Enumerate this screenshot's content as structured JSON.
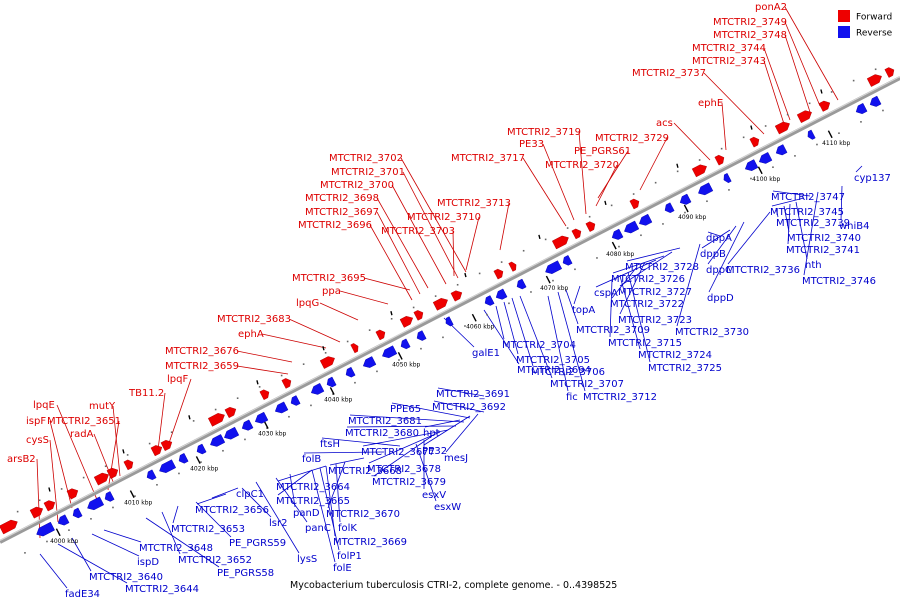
{
  "caption": "Mycobacterium tuberculosis CTRI-2, complete genome. - 0..4398525",
  "legend": [
    {
      "label": "Forward",
      "color": "#ee0000"
    },
    {
      "label": "Reverse",
      "color": "#1111ee"
    }
  ],
  "colors": {
    "forward": "#ee0000",
    "reverse": "#1111ee",
    "forward_line": "#cc0000",
    "reverse_line": "#0000cc",
    "backbone": "#9a9a9a"
  },
  "ticks": [
    "4000 kbp",
    "4010 kbp",
    "4020 kbp",
    "4030 kbp",
    "4040 kbp",
    "4050 kbp",
    "4060 kbp",
    "4070 kbp",
    "4080 kbp",
    "4090 kbp",
    "4100 kbp",
    "4110 kbp"
  ],
  "forward_labels": [
    "arsB2",
    "cysS",
    "ispF",
    "lpqE",
    "MTCTRI2_3651",
    "radA",
    "mutY",
    "TB11.2",
    "lpqF",
    "MTCTRI2_3659",
    "MTCTRI2_3676",
    "ephA",
    "MTCTRI2_3683",
    "lpqG",
    "ppa",
    "MTCTRI2_3695",
    "MTCTRI2_3696",
    "MTCTRI2_3697",
    "MTCTRI2_3698",
    "MTCTRI2_3700",
    "MTCTRI2_3701",
    "MTCTRI2_3702",
    "MTCTRI2_3703",
    "MTCTRI2_3710",
    "MTCTRI2_3713",
    "MTCTRI2_3717",
    "PE33",
    "MTCTRI2_3719",
    "MTCTRI2_3720",
    "PE_PGRS61",
    "MTCTRI2_3729",
    "acs",
    "ephE",
    "MTCTRI2_3737",
    "MTCTRI2_3743",
    "MTCTRI2_3744",
    "MTCTRI2_3748",
    "MTCTRI2_3749",
    "ponA2"
  ],
  "reverse_labels": [
    "fadE34",
    "MTCTRI2_3644",
    "MTCTRI2_3640",
    "ispD",
    "MTCTRI2_3648",
    "PE_PGRS58",
    "MTCTRI2_3652",
    "MTCTRI2_3653",
    "PE_PGRS59",
    "clpC1",
    "MTCTRI2_3656",
    "lsr2",
    "lysS",
    "panC",
    "panD",
    "MTCTRI2_3665",
    "MTCTRI2_3664",
    "folE",
    "folP1",
    "MTCTRI2_3669",
    "folK",
    "MTCTRI2_3670",
    "MTCTRI2_3668",
    "folB",
    "ftsH",
    "esxW",
    "esxV",
    "MTCTRI2_3679",
    "MTCTRI2_3678",
    "MTCTRI2_3677",
    "MTCTRI2_3680",
    "MTCTRI2_3681",
    "PPE65",
    "hpt",
    "PE32",
    "mesJ",
    "MTCTRI2_3692",
    "MTCTRI2_3691",
    "galE1",
    "MTCTRI2_3694",
    "MTCTRI2_3704",
    "MTCTRI2_3705",
    "MTCTRI2_3706",
    "MTCTRI2_3707",
    "fic",
    "MTCTRI2_3712",
    "MTCTRI2_3709",
    "topA",
    "MTCTRI2_3715",
    "MTCTRI2_3724",
    "MTCTRI2_3725",
    "MTCTRI2_3722",
    "MTCTRI2_3723",
    "cspA",
    "MTCTRI2_3726",
    "MTCTRI2_3727",
    "MTCTRI2_3728",
    "MTCTRI2_3730",
    "dppA",
    "dppB",
    "dppC",
    "dppD",
    "MTCTRI2_3736",
    "MTCTRI2_3739",
    "MTCTRI2_3740",
    "MTCTRI2_3741",
    "nth",
    "MTCTRI2_3745",
    "MTCTRI2_3747",
    "MTCTRI2_3746",
    "whiB4",
    "cyp137"
  ]
}
